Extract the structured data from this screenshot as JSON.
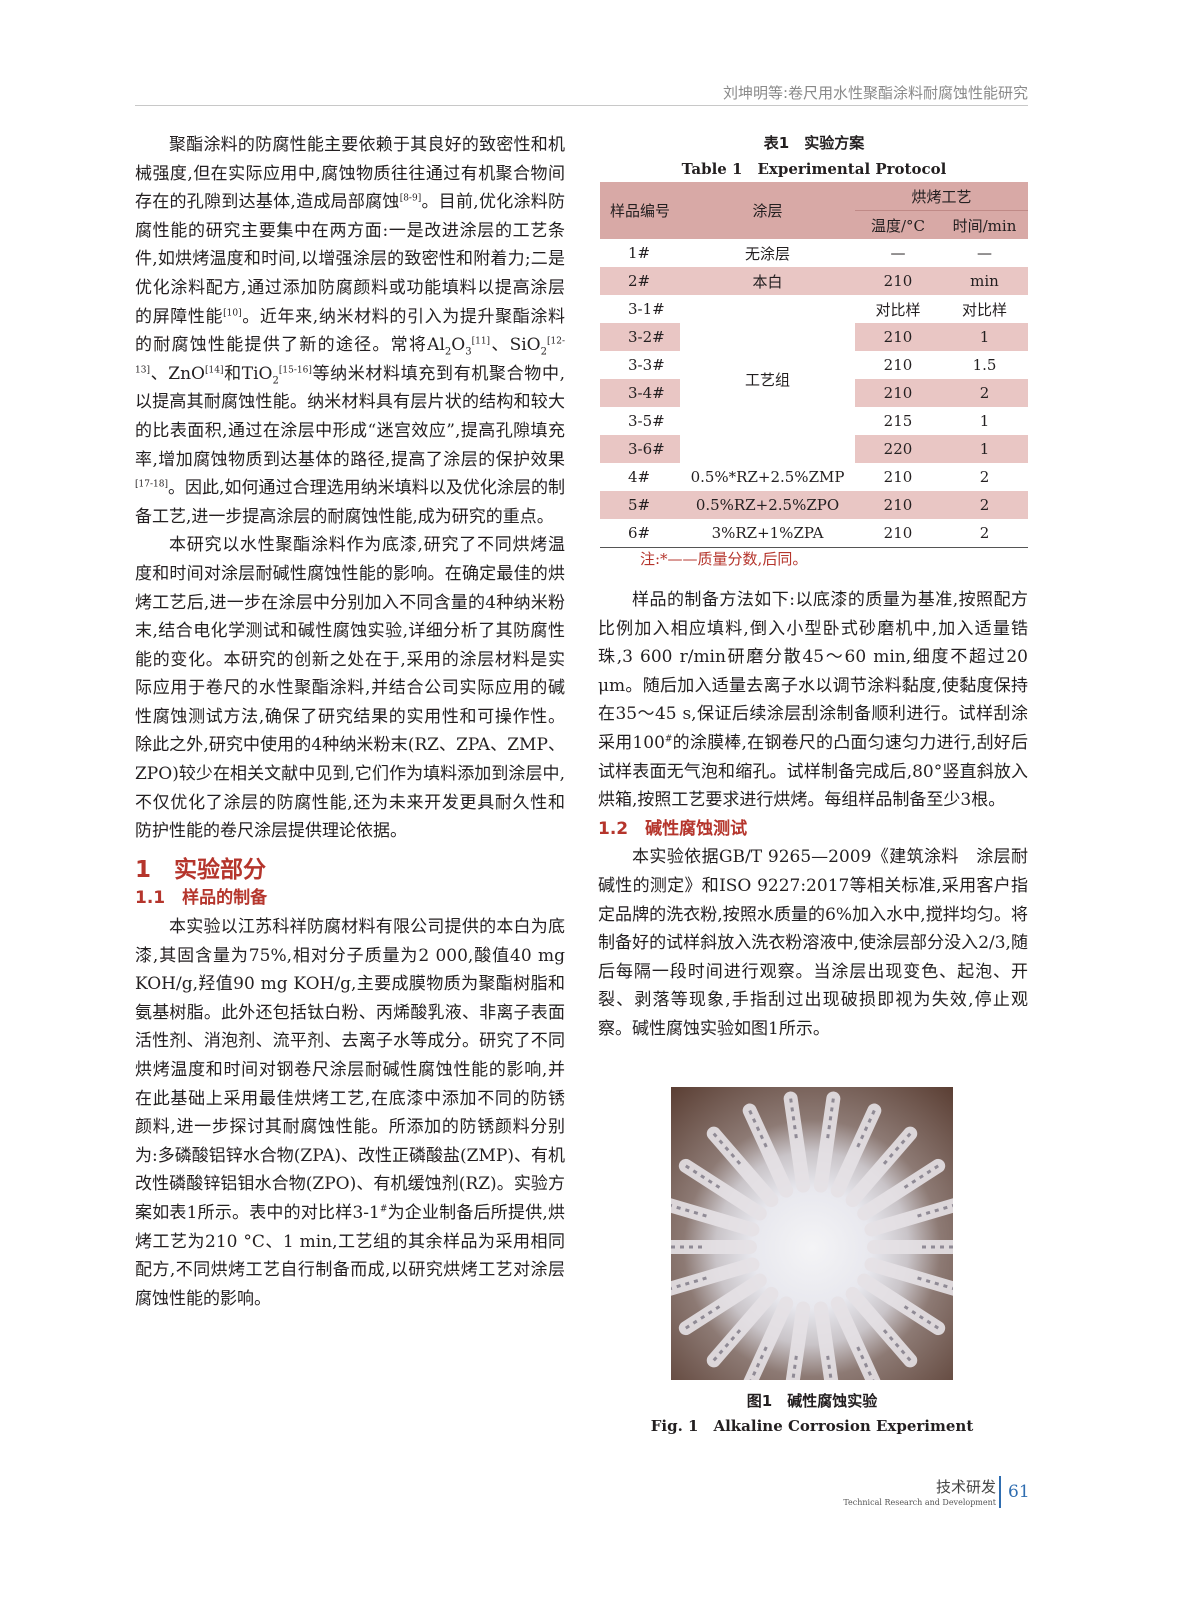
{
  "header": {
    "running_title": "刘坤明等:卷尺用水性聚酯涂料耐腐蚀性能研究"
  },
  "left": {
    "p1": [
      {
        "t": "聚酯涂料的防腐性能主要依赖于其良好的致密性和机械强度,但在实际应用中,腐蚀物质往往通过有机聚合物间存在的孔隙到达基体,造成局部腐蚀"
      },
      {
        "sup": "[8-9]"
      },
      {
        "t": "。目前,优化涂料防腐性能的研究主要集中在两方面:一是改进涂层的工艺条件,如烘烤温度和时间,以增强涂层的致密性和附着力;二是优化涂料配方,通过添加防腐颜料或功能填料以提高涂层的屏障性能"
      },
      {
        "sup": "[10]"
      },
      {
        "t": "。近年来,纳米材料的引入为提升聚酯涂料的耐腐蚀性能提供了新的途径。常将Al"
      },
      {
        "sub": "2"
      },
      {
        "t": "O"
      },
      {
        "sub": "3"
      },
      {
        "sup": "[11]"
      },
      {
        "t": "、SiO"
      },
      {
        "sub": "2"
      },
      {
        "sup": "[12-13]"
      },
      {
        "t": "、ZnO"
      },
      {
        "sup": "[14]"
      },
      {
        "t": "和TiO"
      },
      {
        "sub": "2"
      },
      {
        "sup": "[15-16]"
      },
      {
        "t": "等纳米材料填充到有机聚合物中,以提高其耐腐蚀性能。纳米材料具有层片状的结构和较大的比表面积,通过在涂层中形成“迷宫效应”,提高孔隙填充率,增加腐蚀物质到达基体的路径,提高了涂层的保护效果"
      },
      {
        "sup": "[17-18]"
      },
      {
        "t": "。因此,如何通过合理选用纳米填料以及优化涂层的制备工艺,进一步提高涂层的耐腐蚀性能,成为研究的重点。"
      }
    ],
    "p2": [
      {
        "t": "本研究以水性聚酯涂料作为底漆,研究了不同烘烤温度和时间对涂层耐碱性腐蚀性能的影响。在确定最佳的烘烤工艺后,进一步在涂层中分别加入不同含量的4种纳米粉末,结合电化学测试和碱性腐蚀实验,详细分析了其防腐性能的变化。本研究的创新之处在于,采用的涂层材料是实际应用于卷尺的水性聚酯涂料,并结合公司实际应用的碱性腐蚀测试方法,确保了研究结果的实用性和可操作性。除此之外,研究中使用的4种纳米粉末(RZ、ZPA、ZMP、ZPO)较少在相关文献中见到,它们作为填料添加到涂层中,不仅优化了涂层的防腐性能,还为未来开发更具耐久性和防护性能的卷尺涂层提供理论依据。"
      }
    ],
    "h1": "1　实验部分",
    "h2": "1.1　样品的制备",
    "p3": [
      {
        "t": "本实验以江苏科祥防腐材料有限公司提供的本白为底漆,其固含量为75%,相对分子质量为2 000,酸值40 mg KOH/g,羟值90 mg KOH/g,主要成膜物质为聚酯树脂和氨基树脂。此外还包括钛白粉、丙烯酸乳液、非离子表面活性剂、消泡剂、流平剂、去离子水等成分。研究了不同烘烤温度和时间对钢卷尺涂层耐碱性腐蚀性能的影响,并在此基础上采用最佳烘烤工艺,在底漆中添加不同的防锈颜料,进一步探讨其耐腐蚀性能。所添加的防锈颜料分别为:多磷酸铝锌水合物(ZPA)、改性正磷酸盐(ZMP)、有机改性磷酸锌铝钼水合物(ZPO)、有机缓蚀剂(RZ)。实验方案如表1所示。表中的对比样3-1"
      },
      {
        "sup": "#"
      },
      {
        "t": "为企业制备后所提供,烘烤工艺为210 °C、1 min,工艺组的其余样品为采用相同配方,不同烘烤工艺自行制备而成,以研究烘烤工艺对涂层腐蚀性能的影响。"
      }
    ]
  },
  "table": {
    "caption_cn": "表1　实验方案",
    "caption_en": "Table 1　Experimental Protocol",
    "headers": {
      "id": "样品编号",
      "coating": "涂层",
      "bake": "烘烤工艺",
      "temp": "温度/°C",
      "time": "时间/min"
    },
    "rows": [
      {
        "id": "1#",
        "coating": "无涂层",
        "temp": "—",
        "time": "—"
      },
      {
        "id": "2#",
        "coating": "本白",
        "temp": "210",
        "time": "min"
      },
      {
        "id": "3-1#",
        "coating": "工艺组",
        "temp": "对比样",
        "time": "对比样"
      },
      {
        "id": "3-2#",
        "temp": "210",
        "time": "1"
      },
      {
        "id": "3-3#",
        "temp": "210",
        "time": "1.5"
      },
      {
        "id": "3-4#",
        "temp": "210",
        "time": "2"
      },
      {
        "id": "3-5#",
        "temp": "215",
        "time": "1"
      },
      {
        "id": "3-6#",
        "temp": "220",
        "time": "1"
      },
      {
        "id": "4#",
        "coating": "0.5%*RZ+2.5%ZMP",
        "temp": "210",
        "time": "2"
      },
      {
        "id": "5#",
        "coating": "0.5%RZ+2.5%ZPO",
        "temp": "210",
        "time": "2"
      },
      {
        "id": "6#",
        "coating": "3%RZ+1%ZPA",
        "temp": "210",
        "time": "2"
      }
    ],
    "note": "注:*——质量分数,后同。"
  },
  "right": {
    "p4": [
      {
        "t": "样品的制备方法如下:以底漆的质量为基准,按照配方比例加入相应填料,倒入小型卧式砂磨机中,加入适量锆珠,3 600 r/min研磨分散45～60 min,细度不超过20 μm。随后加入适量去离子水以调节涂料黏度,使黏度保持在35～45 s,保证后续涂层刮涂制备顺利进行。试样刮涂采用100"
      },
      {
        "sup": "#"
      },
      {
        "t": "的涂膜棒,在钢卷尺的凸面匀速匀力进行,刮好后试样表面无气泡和缩孔。试样制备完成后,80°竖直斜放入烘箱,按照工艺要求进行烘烤。每组样品制备至少3根。"
      }
    ],
    "h2": "1.2　碱性腐蚀测试",
    "p5": [
      {
        "t": "本实验依据GB/T 9265—2009《建筑涂料　涂层耐碱性的测定》和ISO 9227:2017等相关标准,采用客户指定品牌的洗衣粉,按照水质量的6%加入水中,搅拌均匀。将制备好的试样斜放入洗衣粉溶液中,使涂层部分没入2/3,随后每隔一段时间进行观察。当涂层出现变色、起泡、开裂、剥落等现象,手指刮过出现破损即视为失效,停止观察。碱性腐蚀实验如图1所示。"
      }
    ]
  },
  "figure": {
    "caption_cn": "图1　碱性腐蚀实验",
    "caption_en": "Fig. 1　Alkaline Corrosion Experiment"
  },
  "footer": {
    "section_cn": "技术研发",
    "section_en": "Technical Research and Development",
    "page": "61"
  },
  "colors": {
    "accent": "#b5352c",
    "table_header": "#d8a9a6",
    "table_stripe": "#e9c6c4"
  }
}
